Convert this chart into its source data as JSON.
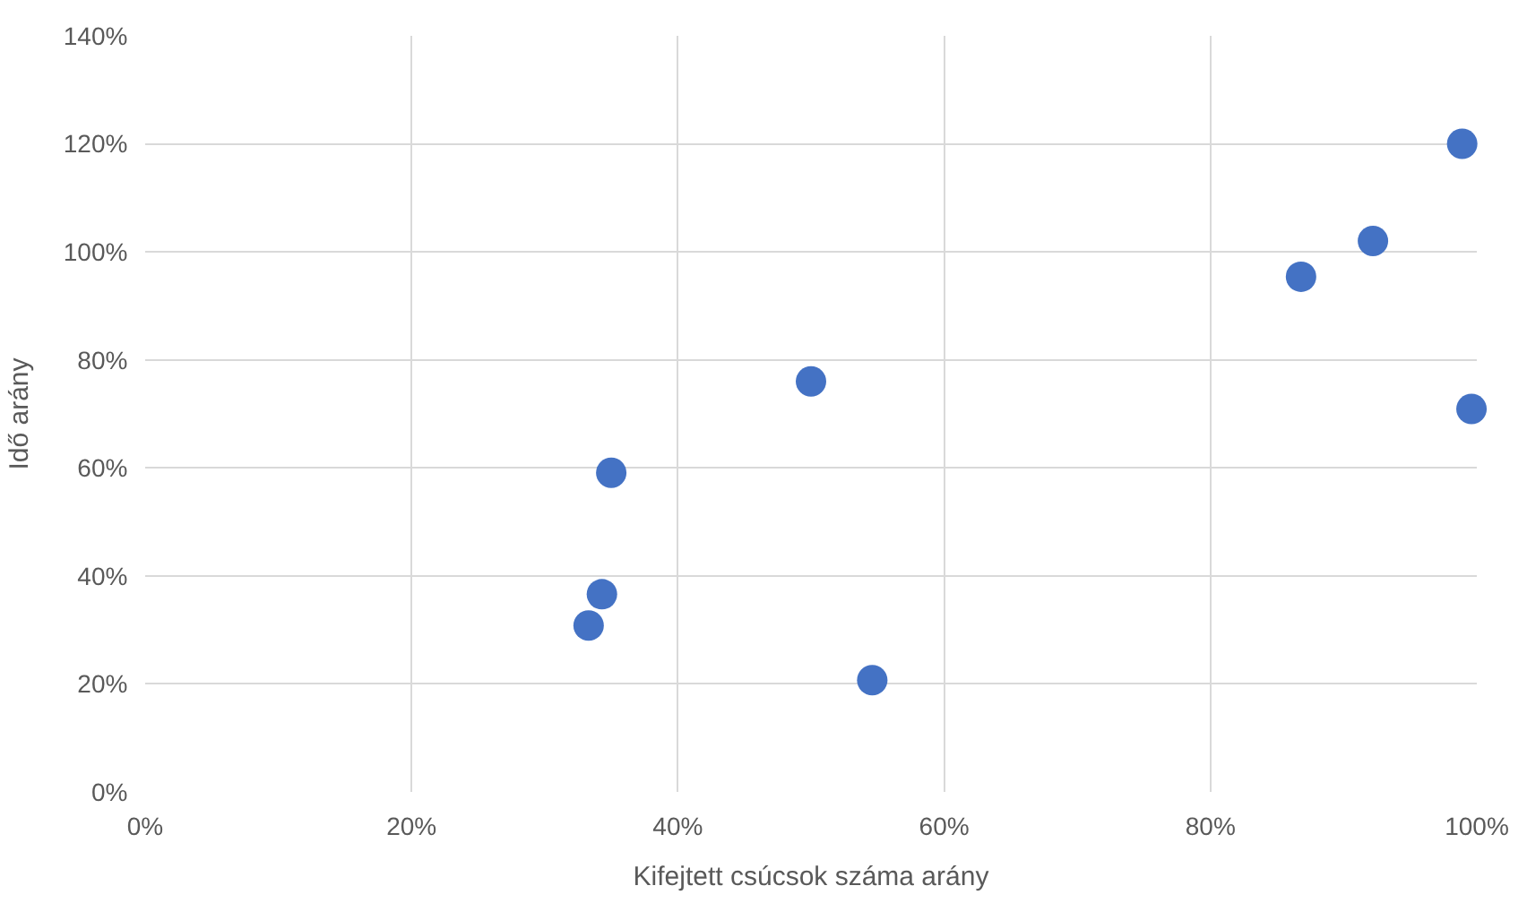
{
  "chart_data": {
    "type": "scatter",
    "xlabel": "Kifejtett csúcsok száma arány",
    "ylabel": "Idő arány",
    "series": [
      {
        "color": "#4472c4",
        "x": [
          33.3,
          34.3,
          35,
          50,
          54.6,
          86.8,
          92.2,
          98.9,
          99.6
        ],
        "values": [
          30.8,
          36.6,
          59.1,
          76,
          20.7,
          95.4,
          102,
          120,
          70.9
        ]
      }
    ],
    "xlim": [
      0,
      100
    ],
    "xticks": [
      {
        "value": 0,
        "label": "0%"
      },
      {
        "value": 20,
        "label": "20%"
      },
      {
        "value": 40,
        "label": "40%"
      },
      {
        "value": 60,
        "label": "60%"
      },
      {
        "value": 80,
        "label": "80%"
      },
      {
        "value": 100,
        "label": "100%"
      }
    ],
    "ylim": [
      0,
      140
    ],
    "yticks": [
      {
        "value": 0,
        "label": "0%"
      },
      {
        "value": 20,
        "label": "20%"
      },
      {
        "value": 40,
        "label": "40%"
      },
      {
        "value": 60,
        "label": "60%"
      },
      {
        "value": 80,
        "label": "80%"
      },
      {
        "value": 100,
        "label": "100%"
      },
      {
        "value": 120,
        "label": "120%"
      },
      {
        "value": 140,
        "label": "140%"
      }
    ],
    "grid": true,
    "marker": "circle"
  }
}
